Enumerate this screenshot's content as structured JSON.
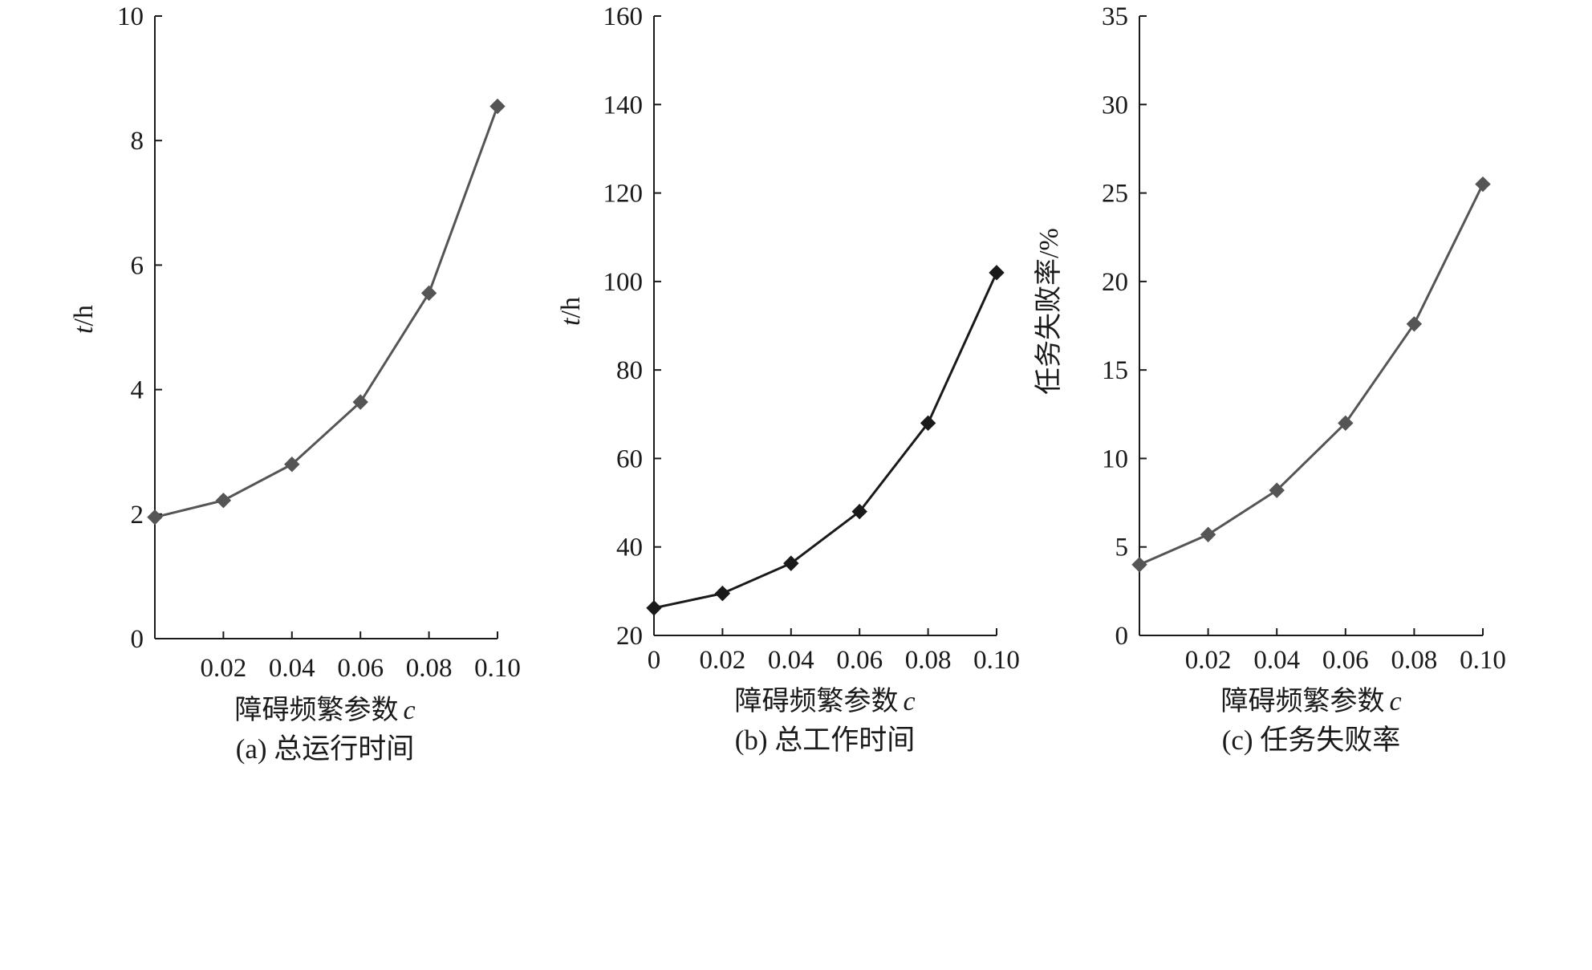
{
  "chart_data": [
    {
      "type": "line",
      "caption": "(a) 总运行时间",
      "xlabel": "障碍频繁参数",
      "xlabel_var": "c",
      "ylabel_var": "t",
      "ylabel_unit": "/h",
      "xlim": [
        0,
        0.1
      ],
      "ylim": [
        0,
        10
      ],
      "x_ticks": [
        "0.02",
        "0.04",
        "0.06",
        "0.08",
        "0.10"
      ],
      "y_ticks": [
        "0",
        "2",
        "4",
        "6",
        "8",
        "10"
      ],
      "series": [
        {
          "x": [
            0,
            0.02,
            0.04,
            0.06,
            0.08,
            0.1
          ],
          "values": [
            1.95,
            2.22,
            2.8,
            3.8,
            5.55,
            8.55
          ],
          "color": "#555555",
          "marker": "diamond"
        }
      ]
    },
    {
      "type": "line",
      "caption": "(b) 总工作时间",
      "xlabel": "障碍频繁参数",
      "xlabel_var": "c",
      "ylabel_var": "t",
      "ylabel_unit": "/h",
      "xlim": [
        0,
        0.1
      ],
      "ylim": [
        20,
        160
      ],
      "x_ticks": [
        "0",
        "0.02",
        "0.04",
        "0.06",
        "0.08",
        "0.10"
      ],
      "y_ticks": [
        "20",
        "40",
        "60",
        "80",
        "100",
        "120",
        "140",
        "160"
      ],
      "series": [
        {
          "x": [
            0,
            0.02,
            0.04,
            0.06,
            0.08,
            0.1
          ],
          "values": [
            26.2,
            29.5,
            36.3,
            48,
            68,
            102
          ],
          "color": "#1a1a1a",
          "marker": "diamond"
        }
      ]
    },
    {
      "type": "line",
      "caption": "(c) 任务失败率",
      "xlabel": "障碍频繁参数",
      "xlabel_var": "c",
      "ylabel_var": "",
      "ylabel_unit": "任务失败率/%",
      "xlim": [
        0,
        0.1
      ],
      "ylim": [
        0,
        35
      ],
      "x_ticks": [
        "0.02",
        "0.04",
        "0.06",
        "0.08",
        "0.10"
      ],
      "y_ticks": [
        "0",
        "5",
        "10",
        "15",
        "20",
        "25",
        "30",
        "35"
      ],
      "series": [
        {
          "x": [
            0,
            0.02,
            0.04,
            0.06,
            0.08,
            0.1
          ],
          "values": [
            4.0,
            5.7,
            8.2,
            12.0,
            17.6,
            25.5
          ],
          "color": "#555555",
          "marker": "diamond"
        }
      ]
    }
  ]
}
